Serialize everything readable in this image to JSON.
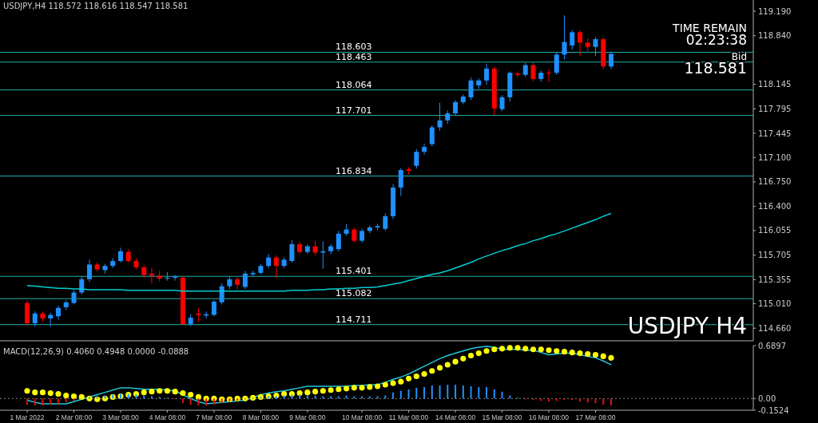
{
  "chart_data": [
    {
      "type": "candlestick",
      "title": "USDJPY,H4 118.572 118.616 118.547 118.581",
      "categories": [
        null,
        null,
        null,
        null,
        null,
        null,
        null,
        null,
        null,
        null,
        null,
        null,
        null,
        null,
        null,
        null,
        null,
        null,
        null,
        null,
        null,
        null,
        null,
        null,
        null,
        null,
        null,
        null,
        null,
        null,
        null,
        null,
        null,
        null,
        null,
        null,
        null,
        null,
        null,
        null,
        null,
        null,
        null,
        null,
        null,
        null,
        null,
        null,
        null,
        null,
        null,
        null,
        null,
        null,
        null,
        null,
        null,
        null,
        null,
        null,
        null,
        null,
        null,
        null,
        null,
        null,
        null,
        null,
        null,
        null,
        null,
        null,
        null,
        null,
        null,
        null
      ],
      "ohlc": [
        [
          115.02,
          115.06,
          114.7,
          114.73
        ],
        [
          114.73,
          114.9,
          114.68,
          114.87
        ],
        [
          114.87,
          114.9,
          114.75,
          114.8
        ],
        [
          114.8,
          114.88,
          114.68,
          114.85
        ],
        [
          114.83,
          114.98,
          114.78,
          114.95
        ],
        [
          114.96,
          115.06,
          114.92,
          115.03
        ],
        [
          115.02,
          115.2,
          115.0,
          115.17
        ],
        [
          115.17,
          115.4,
          115.14,
          115.36
        ],
        [
          115.36,
          115.64,
          115.32,
          115.57
        ],
        [
          115.57,
          115.6,
          115.47,
          115.5
        ],
        [
          115.49,
          115.58,
          115.44,
          115.55
        ],
        [
          115.55,
          115.66,
          115.52,
          115.62
        ],
        [
          115.62,
          115.81,
          115.6,
          115.76
        ],
        [
          115.75,
          115.79,
          115.6,
          115.62
        ],
        [
          115.62,
          115.66,
          115.5,
          115.53
        ],
        [
          115.53,
          115.56,
          115.38,
          115.42
        ],
        [
          115.44,
          115.52,
          115.3,
          115.41
        ],
        [
          115.41,
          115.48,
          115.33,
          115.37
        ],
        [
          115.37,
          115.46,
          115.34,
          115.38
        ],
        [
          115.38,
          115.42,
          115.34,
          115.4
        ],
        [
          115.38,
          115.4,
          114.7,
          114.72
        ],
        [
          114.72,
          114.86,
          114.69,
          114.81
        ],
        [
          114.87,
          114.95,
          114.75,
          114.85
        ],
        [
          114.84,
          114.9,
          114.8,
          114.86
        ],
        [
          114.85,
          115.06,
          114.83,
          115.04
        ],
        [
          115.03,
          115.3,
          115.0,
          115.26
        ],
        [
          115.26,
          115.4,
          115.22,
          115.36
        ],
        [
          115.36,
          115.4,
          115.22,
          115.28
        ],
        [
          115.25,
          115.48,
          115.22,
          115.44
        ],
        [
          115.43,
          115.48,
          115.4,
          115.45
        ],
        [
          115.45,
          115.58,
          115.43,
          115.55
        ],
        [
          115.55,
          115.72,
          115.52,
          115.67
        ],
        [
          115.67,
          115.7,
          115.38,
          115.55
        ],
        [
          115.55,
          115.67,
          115.52,
          115.64
        ],
        [
          115.62,
          115.92,
          115.6,
          115.86
        ],
        [
          115.86,
          115.9,
          115.72,
          115.75
        ],
        [
          115.75,
          115.86,
          115.72,
          115.83
        ],
        [
          115.83,
          115.91,
          115.7,
          115.74
        ],
        [
          115.74,
          115.9,
          115.51,
          115.76
        ],
        [
          115.76,
          115.86,
          115.72,
          115.83
        ],
        [
          115.79,
          116.05,
          115.76,
          116.01
        ],
        [
          116.01,
          116.15,
          115.98,
          116.07
        ],
        [
          116.07,
          116.1,
          115.88,
          115.91
        ],
        [
          115.91,
          116.08,
          115.88,
          116.05
        ],
        [
          116.05,
          116.13,
          116.02,
          116.1
        ],
        [
          116.1,
          116.15,
          116.06,
          116.12
        ],
        [
          116.08,
          116.3,
          116.05,
          116.26
        ],
        [
          116.26,
          116.72,
          116.22,
          116.67
        ],
        [
          116.67,
          116.95,
          116.55,
          116.92
        ],
        [
          116.93,
          116.96,
          116.86,
          116.91
        ],
        [
          116.98,
          117.22,
          116.94,
          117.18
        ],
        [
          117.18,
          117.3,
          117.14,
          117.25
        ],
        [
          117.29,
          117.56,
          117.26,
          117.53
        ],
        [
          117.53,
          117.88,
          117.48,
          117.63
        ],
        [
          117.63,
          117.77,
          117.58,
          117.73
        ],
        [
          117.73,
          117.92,
          117.7,
          117.89
        ],
        [
          117.89,
          118.0,
          117.86,
          117.97
        ],
        [
          117.96,
          118.24,
          117.92,
          118.2
        ],
        [
          118.13,
          118.23,
          118.08,
          118.2
        ],
        [
          118.2,
          118.44,
          118.14,
          118.37
        ],
        [
          118.37,
          118.4,
          117.71,
          117.8
        ],
        [
          117.79,
          117.99,
          117.76,
          117.96
        ],
        [
          117.96,
          118.33,
          117.9,
          118.31
        ],
        [
          118.3,
          118.33,
          118.25,
          118.28
        ],
        [
          118.28,
          118.45,
          118.25,
          118.42
        ],
        [
          118.42,
          118.45,
          118.19,
          118.22
        ],
        [
          118.22,
          118.34,
          118.18,
          118.31
        ],
        [
          118.31,
          118.36,
          118.18,
          118.3
        ],
        [
          118.31,
          118.6,
          118.28,
          118.57
        ],
        [
          118.57,
          119.13,
          118.5,
          118.75
        ],
        [
          118.7,
          118.92,
          118.64,
          118.89
        ],
        [
          118.89,
          118.92,
          118.55,
          118.74
        ],
        [
          118.74,
          118.8,
          118.6,
          118.68
        ],
        [
          118.68,
          118.82,
          118.55,
          118.79
        ],
        [
          118.79,
          118.82,
          118.36,
          118.4
        ],
        [
          118.4,
          118.616,
          118.36,
          118.581
        ]
      ],
      "colors": [
        "#ff0000",
        "#1e90ff",
        "#ff0000",
        "#1e90ff",
        "#1e90ff",
        "#1e90ff",
        "#1e90ff",
        "#1e90ff",
        "#1e90ff",
        "#ff0000",
        "#1e90ff",
        "#1e90ff",
        "#1e90ff",
        "#ff0000",
        "#ff0000",
        "#ff0000",
        "#ff0000",
        "#ff0000",
        "#1e90ff",
        "#1e90ff",
        "#ff0000",
        "#1e90ff",
        "#ff0000",
        "#1e90ff",
        "#1e90ff",
        "#1e90ff",
        "#1e90ff",
        "#ff0000",
        "#1e90ff",
        "#1e90ff",
        "#1e90ff",
        "#1e90ff",
        "#ff0000",
        "#1e90ff",
        "#1e90ff",
        "#ff0000",
        "#1e90ff",
        "#ff0000",
        "#1e90ff",
        "#1e90ff",
        "#1e90ff",
        "#1e90ff",
        "#ff0000",
        "#1e90ff",
        "#1e90ff",
        "#1e90ff",
        "#1e90ff",
        "#1e90ff",
        "#1e90ff",
        "#ff0000",
        "#1e90ff",
        "#1e90ff",
        "#1e90ff",
        "#1e90ff",
        "#1e90ff",
        "#1e90ff",
        "#1e90ff",
        "#1e90ff",
        "#1e90ff",
        "#1e90ff",
        "#ff0000",
        "#1e90ff",
        "#1e90ff",
        "#ff0000",
        "#1e90ff",
        "#ff0000",
        "#1e90ff",
        "#ff0000",
        "#1e90ff",
        "#1e90ff",
        "#1e90ff",
        "#ff0000",
        "#ff0000",
        "#1e90ff",
        "#ff0000",
        "#1e90ff"
      ],
      "series": [
        {
          "type": "line",
          "color": "#00ced1",
          "values": [
            115.27,
            115.26,
            115.25,
            115.24,
            115.23,
            115.23,
            115.22,
            115.22,
            115.21,
            115.21,
            115.21,
            115.21,
            115.21,
            115.2,
            115.2,
            115.2,
            115.2,
            115.2,
            115.2,
            115.2,
            115.19,
            115.19,
            115.19,
            115.19,
            115.19,
            115.19,
            115.19,
            115.19,
            115.19,
            115.19,
            115.19,
            115.19,
            115.19,
            115.19,
            115.2,
            115.2,
            115.2,
            115.21,
            115.21,
            115.22,
            115.22,
            115.23,
            115.23,
            115.24,
            115.24,
            115.25,
            115.27,
            115.29,
            115.31,
            115.34,
            115.37,
            115.4,
            115.43,
            115.45,
            115.48,
            115.52,
            115.56,
            115.6,
            115.65,
            115.69,
            115.73,
            115.77,
            115.8,
            115.84,
            115.87,
            115.91,
            115.94,
            115.98,
            116.01,
            116.05,
            116.09,
            116.13,
            116.17,
            116.21,
            116.26,
            116.3
          ]
        }
      ],
      "ylim": [
        114.48,
        119.35
      ],
      "yticks": [
        {
          "value": 119.19,
          "label": "119.190"
        },
        {
          "value": 118.84,
          "label": "118.840"
        },
        {
          "value": 118.145,
          "label": "118.145"
        },
        {
          "value": 117.795,
          "label": "117.795"
        },
        {
          "value": 117.445,
          "label": "117.445"
        },
        {
          "value": 117.1,
          "label": "117.100"
        },
        {
          "value": 116.75,
          "label": "116.750"
        },
        {
          "value": 116.4,
          "label": "116.400"
        },
        {
          "value": 116.055,
          "label": "116.055"
        },
        {
          "value": 115.705,
          "label": "115.705"
        },
        {
          "value": 115.355,
          "label": "115.355"
        },
        {
          "value": 115.01,
          "label": "115.010"
        },
        {
          "value": 114.66,
          "label": "114.660"
        }
      ],
      "ref_lines": [
        {
          "axis": "y",
          "value": 118.603,
          "label": "118.603",
          "color": "#20b2aa"
        },
        {
          "axis": "y",
          "value": 118.463,
          "label": "118.463",
          "color": "#20b2aa"
        },
        {
          "axis": "y",
          "value": 118.064,
          "label": "118.064",
          "color": "#20b2aa"
        },
        {
          "axis": "y",
          "value": 117.701,
          "label": "117.701",
          "color": "#20b2aa"
        },
        {
          "axis": "y",
          "value": 116.834,
          "label": "116.834",
          "color": "#20b2aa"
        },
        {
          "axis": "y",
          "value": 115.401,
          "label": "115.401",
          "color": "#20b2aa"
        },
        {
          "axis": "y",
          "value": 115.082,
          "label": "115.082",
          "color": "#20b2aa"
        },
        {
          "axis": "y",
          "value": 114.711,
          "label": "114.711",
          "color": "#20b2aa"
        }
      ],
      "annotations": [
        "TIME REMAIN",
        "02:23:38",
        "Bid",
        "118.581",
        "USDJPY H4"
      ]
    },
    {
      "type": "line",
      "title": "MACD(12,26,9) 0.4060 0.4948 0.0000 -0.0888",
      "categories": [
        "1 Mar 2022",
        null,
        null,
        null,
        null,
        null,
        "2 Mar 08:00",
        null,
        null,
        null,
        null,
        null,
        "3 Mar 08:00",
        null,
        null,
        null,
        null,
        null,
        "4 Mar 08:00",
        null,
        null,
        null,
        null,
        null,
        "7 Mar 08:00",
        null,
        null,
        null,
        null,
        null,
        "8 Mar 08:00",
        null,
        null,
        null,
        null,
        null,
        "9 Mar 08:00",
        null,
        null,
        null,
        null,
        null,
        null,
        "10 Mar 08:00",
        null,
        null,
        null,
        null,
        null,
        "11 Mar 08:00",
        null,
        null,
        null,
        null,
        null,
        "14 Mar 08:00",
        null,
        null,
        null,
        null,
        null,
        "15 Mar 08:00",
        null,
        null,
        null,
        null,
        null,
        "16 Mar 08:00",
        null,
        null,
        null,
        null,
        null,
        "17 Mar 08:00",
        null,
        null
      ],
      "series": [
        {
          "type": "bar",
          "colors": [
            "#e01010",
            "#e01010",
            "#e01010",
            "#e01010",
            "#e01010",
            "#e01010",
            "#e01010",
            "#1e90ff",
            "#1e90ff",
            "#1e90ff",
            "#1e90ff",
            "#1e90ff",
            "#1e90ff",
            "#1e90ff",
            "#1e90ff",
            "#1e90ff",
            "#1e90ff",
            "#1e90ff",
            "#1e90ff",
            "#e01010",
            "#e01010",
            "#e01010",
            "#e01010",
            "#e01010",
            "#e01010",
            "#e01010",
            "#e01010",
            "#e01010",
            "#e01010",
            "#1e90ff",
            "#1e90ff",
            "#1e90ff",
            "#1e90ff",
            "#1e90ff",
            "#1e90ff",
            "#1e90ff",
            "#1e90ff",
            "#1e90ff",
            "#1e90ff",
            "#1e90ff",
            "#1e90ff",
            "#1e90ff",
            "#1e90ff",
            "#1e90ff",
            "#1e90ff",
            "#1e90ff",
            "#1e90ff",
            "#1e90ff",
            "#1e90ff",
            "#1e90ff",
            "#1e90ff",
            "#1e90ff",
            "#1e90ff",
            "#1e90ff",
            "#1e90ff",
            "#1e90ff",
            "#1e90ff",
            "#1e90ff",
            "#1e90ff",
            "#1e90ff",
            "#1e90ff",
            "#1e90ff",
            "#1e90ff",
            "#1e90ff",
            "#e01010",
            "#e01010",
            "#e01010",
            "#e01010",
            "#e01010",
            "#e01010",
            "#e01010",
            "#e01010",
            "#e01010",
            "#e01010",
            "#e01010",
            "#e01010"
          ],
          "values": [
            -0.08,
            -0.09,
            -0.09,
            -0.08,
            -0.07,
            -0.05,
            -0.03,
            0.0,
            0.02,
            0.03,
            0.04,
            0.05,
            0.06,
            0.06,
            0.05,
            0.04,
            0.03,
            0.02,
            0.01,
            -0.01,
            -0.06,
            -0.08,
            -0.09,
            -0.09,
            -0.08,
            -0.06,
            -0.04,
            -0.03,
            -0.01,
            0.01,
            0.02,
            0.03,
            0.03,
            0.04,
            0.05,
            0.05,
            0.04,
            0.04,
            0.03,
            0.03,
            0.03,
            0.04,
            0.03,
            0.03,
            0.03,
            0.03,
            0.04,
            0.08,
            0.1,
            0.12,
            0.14,
            0.15,
            0.17,
            0.17,
            0.18,
            0.18,
            0.17,
            0.16,
            0.15,
            0.15,
            0.12,
            0.09,
            0.04,
            0.01,
            -0.01,
            -0.02,
            -0.03,
            -0.04,
            -0.03,
            -0.02,
            -0.02,
            -0.04,
            -0.05,
            -0.06,
            -0.08,
            -0.09
          ]
        },
        {
          "type": "line",
          "color": "#20c8dc",
          "values": [
            -0.02,
            -0.05,
            -0.07,
            -0.07,
            -0.07,
            -0.07,
            -0.04,
            -0.01,
            0.02,
            0.05,
            0.08,
            0.11,
            0.14,
            0.14,
            0.13,
            0.12,
            0.12,
            0.12,
            0.11,
            0.1,
            0.05,
            0.0,
            -0.04,
            -0.07,
            -0.06,
            -0.05,
            -0.04,
            -0.03,
            -0.02,
            0.01,
            0.05,
            0.07,
            0.09,
            0.1,
            0.12,
            0.14,
            0.16,
            0.16,
            0.16,
            0.16,
            0.16,
            0.16,
            0.17,
            0.17,
            0.18,
            0.18,
            0.21,
            0.25,
            0.28,
            0.32,
            0.37,
            0.42,
            0.47,
            0.52,
            0.56,
            0.59,
            0.62,
            0.65,
            0.67,
            0.68,
            0.67,
            0.64,
            0.64,
            0.64,
            0.63,
            0.63,
            0.6,
            0.57,
            0.58,
            0.59,
            0.59,
            0.57,
            0.55,
            0.53,
            0.49,
            0.44
          ]
        },
        {
          "type": "scatter",
          "color": "#ffff00",
          "marker": "circle",
          "values": [
            0.1,
            0.08,
            0.08,
            0.07,
            0.06,
            0.04,
            0.03,
            0.02,
            0.0,
            -0.01,
            0.0,
            0.02,
            0.03,
            0.05,
            0.06,
            0.08,
            0.09,
            0.1,
            0.1,
            0.09,
            0.07,
            0.05,
            0.02,
            0.0,
            0.0,
            -0.01,
            -0.01,
            0.0,
            0.0,
            0.01,
            0.02,
            0.03,
            0.04,
            0.06,
            0.06,
            0.07,
            0.08,
            0.09,
            0.1,
            0.11,
            0.12,
            0.13,
            0.14,
            0.14,
            0.15,
            0.16,
            0.18,
            0.2,
            0.22,
            0.26,
            0.29,
            0.32,
            0.36,
            0.4,
            0.44,
            0.48,
            0.52,
            0.56,
            0.59,
            0.62,
            0.64,
            0.65,
            0.66,
            0.66,
            0.65,
            0.64,
            0.64,
            0.63,
            0.62,
            0.61,
            0.6,
            0.59,
            0.58,
            0.57,
            0.55,
            0.53
          ]
        }
      ],
      "ylim": [
        -0.1524,
        0.6897
      ],
      "yticks": [
        0.6897,
        {
          "value": 0,
          "label": "0.00"
        },
        -0.1524
      ],
      "ref_lines": [
        {
          "axis": "y",
          "value": 0,
          "color": "#808080",
          "line_style": "dotted"
        }
      ]
    }
  ]
}
